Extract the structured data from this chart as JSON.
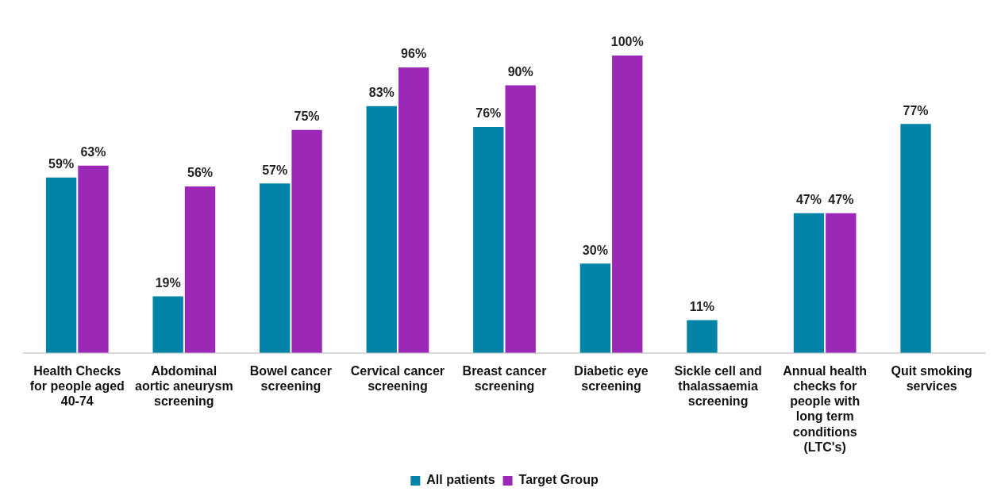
{
  "chart_data": {
    "type": "bar",
    "categories": [
      "Health Checks for people aged 40-74",
      "Abdominal aortic aneurysm screening",
      "Bowel cancer screening",
      "Cervical cancer screening",
      "Breast cancer screening",
      "Diabetic eye screening",
      "Sickle cell and thalassaemia screening",
      "Annual health checks for people with long term conditions (LTC's)",
      "Quit smoking services"
    ],
    "series": [
      {
        "name": "All patients",
        "color": "#0083a6",
        "values": [
          59,
          19,
          57,
          83,
          76,
          30,
          11,
          47,
          77
        ],
        "value_labels": [
          "59%",
          "19%",
          "57%",
          "83%",
          "76%",
          "30%",
          "11%",
          "47%",
          "77%"
        ]
      },
      {
        "name": "Target Group",
        "color": "#9b28b6",
        "values": [
          63,
          56,
          75,
          96,
          90,
          100,
          null,
          47,
          null
        ],
        "value_labels": [
          "63%",
          "56%",
          "75%",
          "96%",
          "90%",
          "100%",
          null,
          "47%",
          null
        ]
      }
    ],
    "grid": false,
    "legend": "bottom",
    "tick_labels": "x"
  }
}
